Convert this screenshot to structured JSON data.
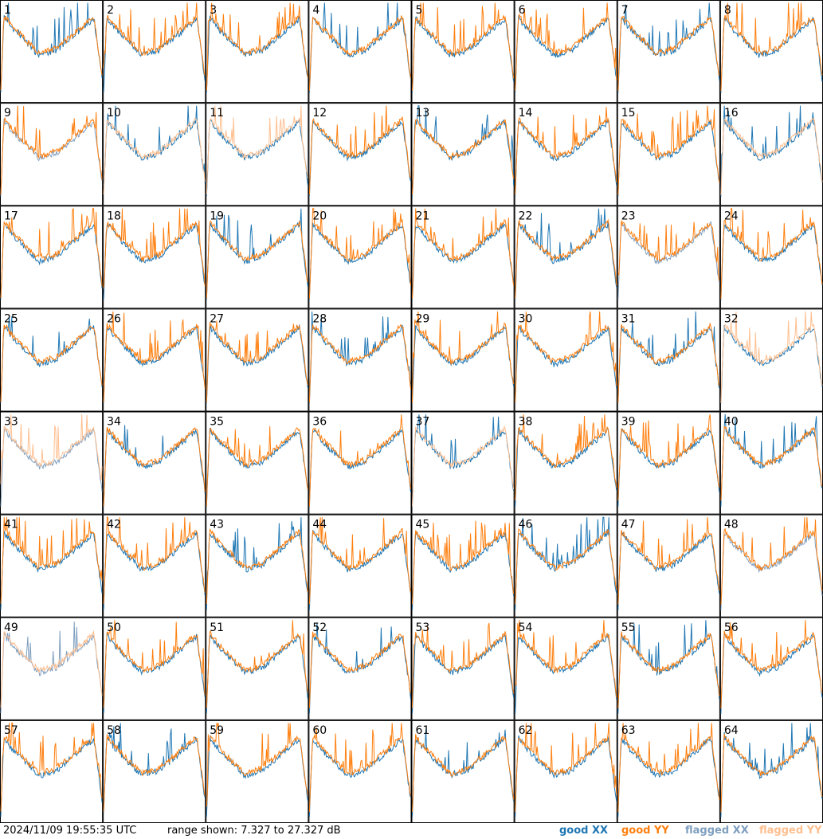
{
  "timestamp": "2024/11/09 19:55:35 UTC",
  "range_text": "range shown: 7.327 to 27.327 dB",
  "legend": [
    {
      "label": "good XX",
      "color": "#1f77b4"
    },
    {
      "label": "good YY",
      "color": "#ff7f0e"
    },
    {
      "label": "flagged XX",
      "color": "#7f9fbf"
    },
    {
      "label": "flagged YY",
      "color": "#ffbf8f"
    }
  ],
  "chart_data": {
    "type": "line",
    "layout": "8x8 small multiples",
    "y_range_db": [
      7.327,
      27.327
    ],
    "series_names": [
      "good XX",
      "good YY",
      "flagged XX",
      "flagged YY"
    ],
    "panels": [
      {
        "label": "1",
        "xx": "good",
        "yy": "good"
      },
      {
        "label": "2",
        "xx": "good",
        "yy": "good"
      },
      {
        "label": "3",
        "xx": "good",
        "yy": "good"
      },
      {
        "label": "4",
        "xx": "good",
        "yy": "good"
      },
      {
        "label": "5",
        "xx": "good",
        "yy": "good"
      },
      {
        "label": "6",
        "xx": "good",
        "yy": "good"
      },
      {
        "label": "7",
        "xx": "good",
        "yy": "good"
      },
      {
        "label": "8",
        "xx": "good",
        "yy": "good"
      },
      {
        "label": "9",
        "xx": "flagged",
        "yy": "good"
      },
      {
        "label": "10",
        "xx": "good",
        "yy": "flagged"
      },
      {
        "label": "11",
        "xx": "good",
        "yy": "flagged"
      },
      {
        "label": "12",
        "xx": "good",
        "yy": "good"
      },
      {
        "label": "13",
        "xx": "good",
        "yy": "good"
      },
      {
        "label": "14",
        "xx": "good",
        "yy": "good"
      },
      {
        "label": "15",
        "xx": "good",
        "yy": "good"
      },
      {
        "label": "16",
        "xx": "good",
        "yy": "flagged"
      },
      {
        "label": "17",
        "xx": "good",
        "yy": "good"
      },
      {
        "label": "18",
        "xx": "good",
        "yy": "good"
      },
      {
        "label": "19",
        "xx": "good",
        "yy": "good"
      },
      {
        "label": "20",
        "xx": "good",
        "yy": "good"
      },
      {
        "label": "21",
        "xx": "good",
        "yy": "good"
      },
      {
        "label": "22",
        "xx": "good",
        "yy": "good"
      },
      {
        "label": "23",
        "xx": "flagged",
        "yy": "good"
      },
      {
        "label": "24",
        "xx": "good",
        "yy": "good"
      },
      {
        "label": "25",
        "xx": "good",
        "yy": "good"
      },
      {
        "label": "26",
        "xx": "good",
        "yy": "good"
      },
      {
        "label": "27",
        "xx": "good",
        "yy": "good"
      },
      {
        "label": "28",
        "xx": "good",
        "yy": "good"
      },
      {
        "label": "29",
        "xx": "good",
        "yy": "good"
      },
      {
        "label": "30",
        "xx": "good",
        "yy": "good"
      },
      {
        "label": "31",
        "xx": "good",
        "yy": "good"
      },
      {
        "label": "32",
        "xx": "good",
        "yy": "flagged"
      },
      {
        "label": "33",
        "xx": "flagged",
        "yy": "flagged"
      },
      {
        "label": "34",
        "xx": "good",
        "yy": "good"
      },
      {
        "label": "35",
        "xx": "good",
        "yy": "good"
      },
      {
        "label": "36",
        "xx": "good",
        "yy": "good"
      },
      {
        "label": "37",
        "xx": "good",
        "yy": "flagged"
      },
      {
        "label": "38",
        "xx": "good",
        "yy": "good"
      },
      {
        "label": "39",
        "xx": "good",
        "yy": "good"
      },
      {
        "label": "40",
        "xx": "good",
        "yy": "good"
      },
      {
        "label": "41",
        "xx": "good",
        "yy": "good"
      },
      {
        "label": "42",
        "xx": "good",
        "yy": "good"
      },
      {
        "label": "43",
        "xx": "good",
        "yy": "good"
      },
      {
        "label": "44",
        "xx": "good",
        "yy": "good"
      },
      {
        "label": "45",
        "xx": "good",
        "yy": "good"
      },
      {
        "label": "46",
        "xx": "good",
        "yy": "good"
      },
      {
        "label": "47",
        "xx": "good",
        "yy": "good"
      },
      {
        "label": "48",
        "xx": "flagged",
        "yy": "good"
      },
      {
        "label": "49",
        "xx": "flagged",
        "yy": "flagged"
      },
      {
        "label": "50",
        "xx": "good",
        "yy": "good"
      },
      {
        "label": "51",
        "xx": "good",
        "yy": "good"
      },
      {
        "label": "52",
        "xx": "good",
        "yy": "good"
      },
      {
        "label": "53",
        "xx": "good",
        "yy": "good"
      },
      {
        "label": "54",
        "xx": "good",
        "yy": "good"
      },
      {
        "label": "55",
        "xx": "good",
        "yy": "good"
      },
      {
        "label": "56",
        "xx": "good",
        "yy": "good"
      },
      {
        "label": "57",
        "xx": "good",
        "yy": "good"
      },
      {
        "label": "58",
        "xx": "good",
        "yy": "good"
      },
      {
        "label": "59",
        "xx": "good",
        "yy": "good"
      },
      {
        "label": "60",
        "xx": "good",
        "yy": "good"
      },
      {
        "label": "61",
        "xx": "good",
        "yy": "good"
      },
      {
        "label": "62",
        "xx": "good",
        "yy": "good"
      },
      {
        "label": "63",
        "xx": "good",
        "yy": "good"
      },
      {
        "label": "64",
        "xx": "good",
        "yy": "good"
      }
    ]
  }
}
